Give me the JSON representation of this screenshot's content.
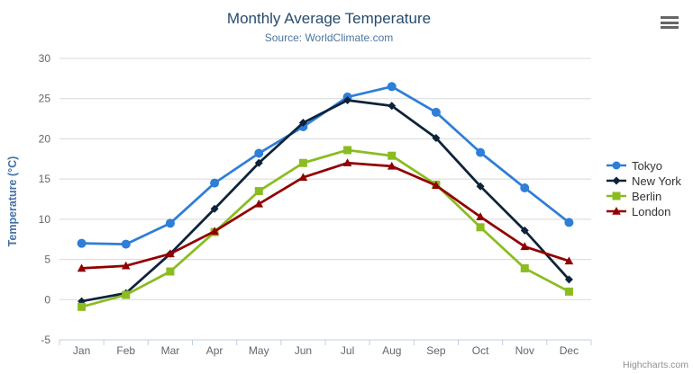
{
  "chart": {
    "title": "Monthly Average Temperature",
    "subtitle": "Source: WorldClimate.com",
    "y_axis_title": "Temperature (°C)",
    "credits": "Highcharts.com"
  },
  "colors": {
    "title": "#274b6d",
    "subtitle": "#4d759e",
    "axis_labels": "#666666",
    "y_axis_title": "#4572a7",
    "legend_text": "#333333",
    "grid": "#d8d8d8",
    "x_axis_line": "#c0d0e0",
    "credits": "#909090",
    "menu_icon": "#666666",
    "background": "#ffffff"
  },
  "chart_data": {
    "type": "line",
    "title": "Monthly Average Temperature",
    "subtitle": "Source: WorldClimate.com",
    "xlabel": "",
    "ylabel": "Temperature (°C)",
    "ylim": [
      -5,
      30
    ],
    "ytick_interval": 5,
    "yticks": [
      -5,
      0,
      5,
      10,
      15,
      20,
      25,
      30
    ],
    "grid": true,
    "legend_position": "right",
    "categories": [
      "Jan",
      "Feb",
      "Mar",
      "Apr",
      "May",
      "Jun",
      "Jul",
      "Aug",
      "Sep",
      "Oct",
      "Nov",
      "Dec"
    ],
    "series": [
      {
        "name": "Tokyo",
        "color": "#2f7ed8",
        "marker": "circle",
        "values": [
          7.0,
          6.9,
          9.5,
          14.5,
          18.2,
          21.5,
          25.2,
          26.5,
          23.3,
          18.3,
          13.9,
          9.6
        ]
      },
      {
        "name": "New York",
        "color": "#0d233a",
        "marker": "diamond",
        "values": [
          -0.2,
          0.8,
          5.7,
          11.3,
          17.0,
          22.0,
          24.8,
          24.1,
          20.1,
          14.1,
          8.6,
          2.5
        ]
      },
      {
        "name": "Berlin",
        "color": "#8bbc21",
        "marker": "square",
        "values": [
          -0.9,
          0.6,
          3.5,
          8.4,
          13.5,
          17.0,
          18.6,
          17.9,
          14.3,
          9.0,
          3.9,
          1.0
        ]
      },
      {
        "name": "London",
        "color": "#910000",
        "marker": "triangle",
        "values": [
          3.9,
          4.2,
          5.7,
          8.5,
          11.9,
          15.2,
          17.0,
          16.6,
          14.2,
          10.3,
          6.6,
          4.8
        ]
      }
    ]
  }
}
